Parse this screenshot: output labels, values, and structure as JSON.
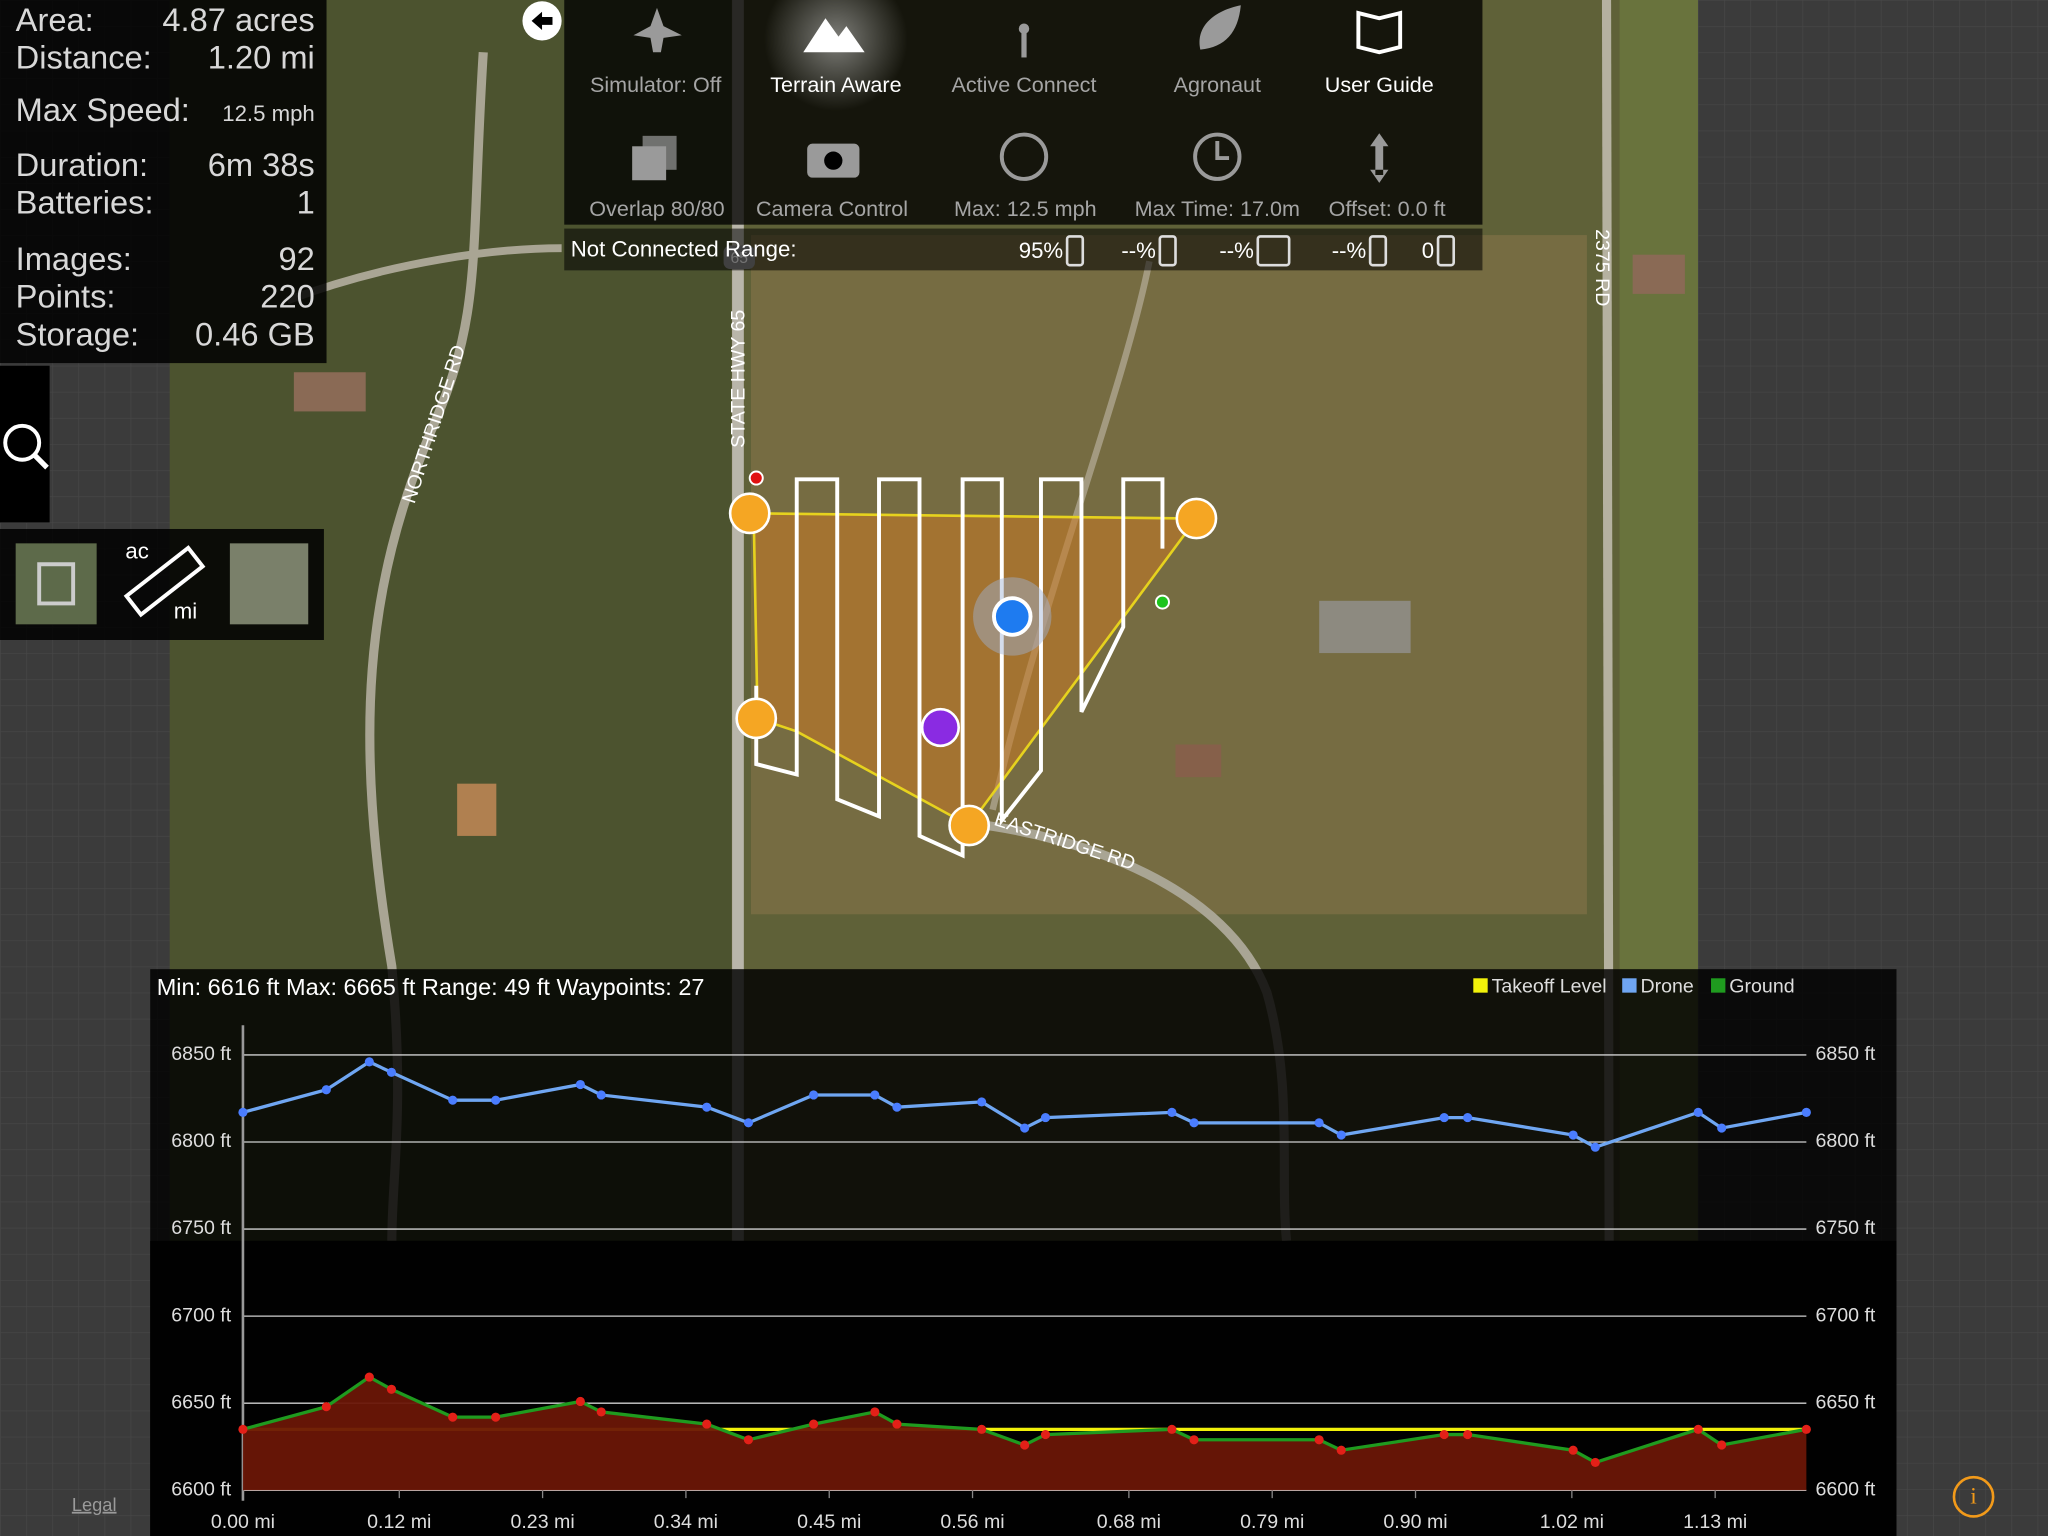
{
  "stats": [
    {
      "label": "Area:",
      "value": "4.87 acres"
    },
    {
      "label": "Distance:",
      "value": "1.20 mi"
    },
    {
      "label": "Max Speed:",
      "value": "12.5 mph"
    },
    {
      "label": "Duration:",
      "value": "6m 38s"
    },
    {
      "label": "Batteries:",
      "value": "1"
    },
    {
      "label": "Images:",
      "value": "92"
    },
    {
      "label": "Points:",
      "value": "220"
    },
    {
      "label": "Storage:",
      "value": "0.46 GB"
    }
  ],
  "toolbar": [
    {
      "label": "Simulator: Off"
    },
    {
      "label": "Terrain Aware"
    },
    {
      "label": "Active Connect"
    },
    {
      "label": "Agronaut"
    },
    {
      "label": "User Guide"
    },
    {
      "label": "Overlap 80/80"
    },
    {
      "label": "Camera Control"
    },
    {
      "label": "Max: 12.5 mph"
    },
    {
      "label": "Max Time: 17.0m"
    },
    {
      "label": "Offset: 0.0 ft"
    }
  ],
  "status_bar": {
    "label": "Not Connected Range:",
    "phone": "95%",
    "remote": "--%",
    "hd": "--%",
    "drone": "--%",
    "satellites": "0"
  },
  "map_labels": {
    "highway": "STATE HWY 65",
    "shield": "65",
    "northridge": "NORTHRIDGE RD",
    "eastridge": "EASTRIDGE RD",
    "road_2375": "2375 RD"
  },
  "tools": {
    "units_top": "ac",
    "units_bottom": "mi"
  },
  "legal": "Legal",
  "chart_data": {
    "type": "line",
    "title": "Min: 6616 ft  Max: 6665 ft  Range: 49 ft  Waypoints: 27",
    "x": [
      0,
      0.064,
      0.097,
      0.114,
      0.161,
      0.194,
      0.259,
      0.275,
      0.356,
      0.388,
      0.438,
      0.485,
      0.502,
      0.567,
      0.6,
      0.616,
      0.713,
      0.73,
      0.826,
      0.843,
      0.922,
      0.94,
      1.021,
      1.038,
      1.117,
      1.135,
      1.2
    ],
    "series": [
      {
        "name": "Takeoff Level",
        "color": "#f2f20a",
        "values": [
          6635,
          6635,
          6635,
          6635,
          6635,
          6635,
          6635,
          6635,
          6635,
          6635,
          6635,
          6635,
          6635,
          6635,
          6635,
          6635,
          6635,
          6635,
          6635,
          6635,
          6635,
          6635,
          6635,
          6635,
          6635,
          6635,
          6635
        ]
      },
      {
        "name": "Drone",
        "color": "#6fa6f2",
        "marker_color": "#4a7dff",
        "values": [
          6817,
          6830,
          6846,
          6840,
          6824,
          6824,
          6833,
          6827,
          6820,
          6811,
          6827,
          6827,
          6820,
          6823,
          6808,
          6814,
          6817,
          6811,
          6811,
          6804,
          6814,
          6814,
          6804,
          6797,
          6817,
          6808,
          6817
        ]
      },
      {
        "name": "Ground",
        "color": "#1f9b1f",
        "marker_color": "#e32018",
        "fill": "#6a1606",
        "values": [
          6635,
          6648,
          6665,
          6658,
          6642,
          6642,
          6651,
          6645,
          6638,
          6629,
          6638,
          6645,
          6638,
          6635,
          6626,
          6632,
          6635,
          6629,
          6629,
          6623,
          6632,
          6632,
          6623,
          6616,
          6635,
          6626,
          6635
        ]
      }
    ],
    "xlim": [
      0,
      1.2
    ],
    "ylim": [
      6600,
      6867
    ],
    "xticks": [
      {
        "value": 0,
        "label": "0.00 mi"
      },
      {
        "value": 0.12,
        "label": "0.12 mi"
      },
      {
        "value": 0.23,
        "label": "0.23 mi"
      },
      {
        "value": 0.34,
        "label": "0.34 mi"
      },
      {
        "value": 0.45,
        "label": "0.45 mi"
      },
      {
        "value": 0.56,
        "label": "0.56 mi"
      },
      {
        "value": 0.68,
        "label": "0.68 mi"
      },
      {
        "value": 0.79,
        "label": "0.79 mi"
      },
      {
        "value": 0.9,
        "label": "0.90 mi"
      },
      {
        "value": 1.02,
        "label": "1.02 mi"
      },
      {
        "value": 1.13,
        "label": "1.13 mi"
      }
    ],
    "yticks": [
      {
        "value": 6600,
        "label": "6600 ft"
      },
      {
        "value": 6650,
        "label": "6650 ft"
      },
      {
        "value": 6700,
        "label": "6700 ft"
      },
      {
        "value": 6750,
        "label": "6750 ft"
      },
      {
        "value": 6800,
        "label": "6800 ft"
      },
      {
        "value": 6850,
        "label": "6850 ft"
      }
    ],
    "grid": true
  }
}
